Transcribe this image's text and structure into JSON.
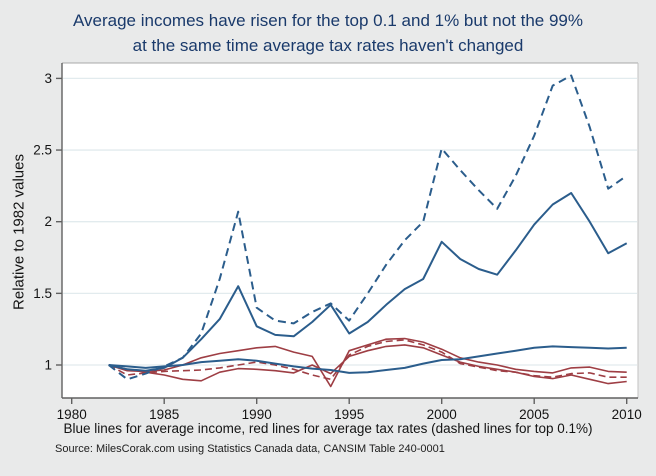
{
  "figure": {
    "title_line1": "Average incomes have risen for the top 0.1 and 1% but not the 99%",
    "title_line2": "at the same time average tax rates haven't changed",
    "caption": "Blue lines for average income, red lines for average tax rates (dashed lines for top 0.1%)",
    "source": "Source: MilesCorak.com using Statistics Canada data, CANSIM Table 240-0001"
  },
  "colors": {
    "title": "#1a3a6b",
    "blue": "#2b5d8c",
    "red": "#9e3e44",
    "grid": "#e2ebee",
    "axis": "#606060",
    "frame_top": "#a8a8a8",
    "frame_right": "#c2c2c2",
    "background": "#e9eaea",
    "plot_bg": "#ffffff"
  },
  "chart_data": {
    "type": "line",
    "title": "Average incomes have risen for the top 0.1 and 1% but not the 99% at the same time average tax rates haven't changed",
    "xlabel": "",
    "ylabel": "Relative to 1982 values",
    "x": [
      1982,
      1983,
      1984,
      1985,
      1986,
      1987,
      1988,
      1989,
      1990,
      1991,
      1992,
      1993,
      1994,
      1995,
      1996,
      1997,
      1998,
      1999,
      2000,
      2001,
      2002,
      2003,
      2004,
      2005,
      2006,
      2007,
      2008,
      2009,
      2010
    ],
    "xticks": [
      1980,
      1985,
      1990,
      1995,
      2000,
      2005,
      2010
    ],
    "yticks": [
      1,
      1.5,
      2,
      2.5,
      3
    ],
    "xlim": [
      1979.5,
      2010.6
    ],
    "ylim": [
      0.77,
      3.11
    ],
    "grid": true,
    "legend_position": "none (lines described in caption)",
    "series": [
      {
        "name": "Bottom 99% average tax rate",
        "color": "red",
        "dashed": false,
        "values": [
          1.0,
          0.97,
          0.95,
          0.93,
          0.9,
          0.89,
          0.95,
          0.975,
          0.97,
          0.96,
          0.945,
          1.0,
          0.94,
          1.06,
          1.1,
          1.13,
          1.14,
          1.12,
          1.07,
          1.02,
          0.99,
          0.97,
          0.95,
          0.92,
          0.905,
          0.93,
          0.9,
          0.87,
          0.885
        ]
      },
      {
        "name": "Top 1% average tax rate",
        "color": "red",
        "dashed": false,
        "values": [
          1.0,
          0.96,
          0.955,
          0.965,
          1.0,
          1.05,
          1.08,
          1.1,
          1.12,
          1.13,
          1.09,
          1.06,
          0.85,
          1.1,
          1.14,
          1.18,
          1.185,
          1.16,
          1.11,
          1.05,
          1.02,
          1.0,
          0.97,
          0.955,
          0.945,
          0.98,
          0.985,
          0.955,
          0.95
        ]
      },
      {
        "name": "Top 0.1% average tax rate",
        "color": "red",
        "dashed": true,
        "values": [
          1.0,
          0.93,
          0.945,
          0.955,
          0.96,
          0.965,
          0.98,
          1.0,
          1.02,
          1.0,
          0.97,
          0.93,
          0.9,
          1.07,
          1.13,
          1.165,
          1.175,
          1.14,
          1.09,
          1.01,
          0.985,
          0.96,
          0.95,
          0.925,
          0.915,
          0.94,
          0.945,
          0.915,
          0.915
        ]
      },
      {
        "name": "Bottom 99% average income",
        "color": "blue",
        "dashed": false,
        "values": [
          1.0,
          0.99,
          0.98,
          0.99,
          1.0,
          1.02,
          1.03,
          1.04,
          1.03,
          1.01,
          0.99,
          0.975,
          0.965,
          0.945,
          0.95,
          0.965,
          0.98,
          1.01,
          1.035,
          1.04,
          1.06,
          1.08,
          1.1,
          1.12,
          1.13,
          1.125,
          1.12,
          1.115,
          1.12
        ]
      },
      {
        "name": "Top 1% average income",
        "color": "blue",
        "dashed": false,
        "values": [
          1.0,
          0.97,
          0.96,
          0.98,
          1.05,
          1.18,
          1.32,
          1.55,
          1.27,
          1.21,
          1.2,
          1.3,
          1.42,
          1.22,
          1.3,
          1.42,
          1.53,
          1.6,
          1.86,
          1.74,
          1.67,
          1.63,
          1.8,
          1.98,
          2.12,
          2.2,
          2.0,
          1.78,
          1.85
        ]
      },
      {
        "name": "Top 0.1% average income",
        "color": "blue",
        "dashed": true,
        "values": [
          1.0,
          0.9,
          0.94,
          0.99,
          1.05,
          1.22,
          1.6,
          2.07,
          1.4,
          1.31,
          1.29,
          1.37,
          1.43,
          1.31,
          1.5,
          1.7,
          1.87,
          2.0,
          2.51,
          2.36,
          2.22,
          2.09,
          2.32,
          2.6,
          2.95,
          3.02,
          2.66,
          2.23,
          2.32
        ]
      }
    ]
  }
}
